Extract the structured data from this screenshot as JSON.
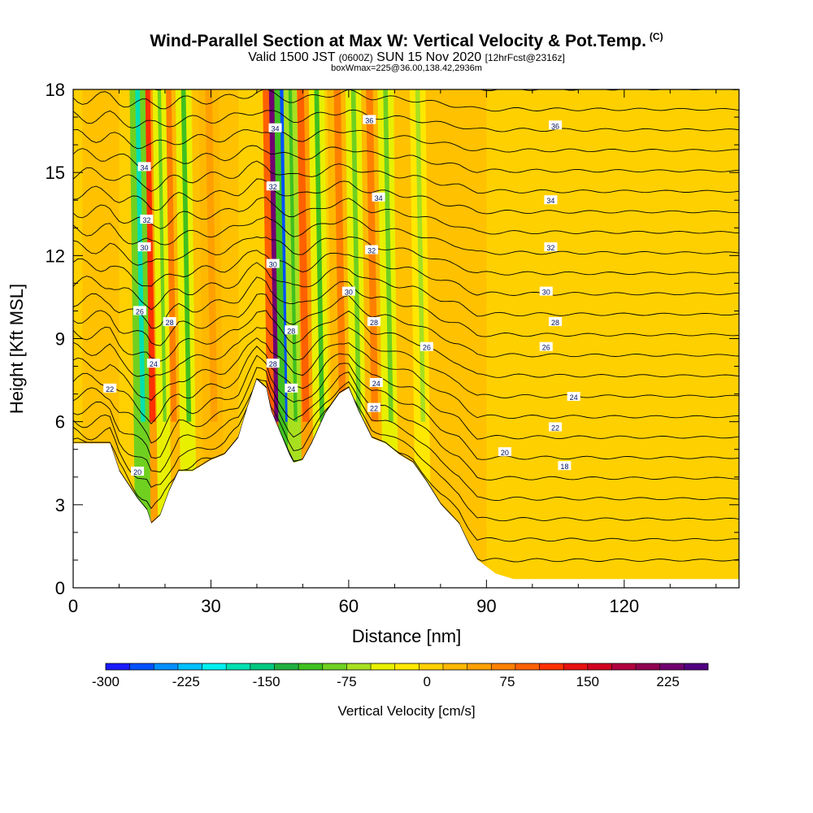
{
  "title": {
    "main": "Wind-Parallel Section at Max W: Vertical Velocity & Pot.Temp.",
    "copyright": "(C)",
    "line2_prefix": "Valid 1500 JST",
    "line2_zulu": "(0600Z)",
    "line2_date": "SUN 15 Nov 2020",
    "line2_fcst": "[12hrFcst@2316z]",
    "line3": "boxWmax=225@36.00,138.42,2936m"
  },
  "chart_data": {
    "type": "heatmap",
    "xlabel": "Distance [nm]",
    "ylabel": "Height [Kft MSL]",
    "xlim": [
      0,
      145
    ],
    "ylim": [
      0,
      18
    ],
    "x_ticks": [
      "0",
      "30",
      "60",
      "90",
      "120"
    ],
    "x_tick_values": [
      0,
      30,
      60,
      90,
      120
    ],
    "y_ticks": [
      "0",
      "3",
      "6",
      "9",
      "12",
      "15",
      "18"
    ],
    "y_tick_values": [
      0,
      3,
      6,
      9,
      12,
      15,
      18
    ],
    "colorbar": {
      "label": "Vertical Velocity [cm/s]",
      "tick_labels": [
        "-300",
        "-225",
        "-150",
        "-75",
        "0",
        "75",
        "150",
        "225"
      ],
      "tick_values": [
        -300,
        -225,
        -150,
        -75,
        0,
        75,
        150,
        225
      ],
      "range": [
        -300,
        262.5
      ],
      "colors": [
        "#1a1aff",
        "#0050ff",
        "#0090ff",
        "#00c0ff",
        "#00f0f0",
        "#00e0b0",
        "#00c880",
        "#20b040",
        "#40c020",
        "#70d020",
        "#a8e020",
        "#e8f000",
        "#ffe800",
        "#ffd000",
        "#ffb800",
        "#ffa000",
        "#ff8000",
        "#ff6000",
        "#ff3000",
        "#e81010",
        "#d00020",
        "#b00040",
        "#900050",
        "#700070",
        "#500080"
      ]
    },
    "terrain": [
      [
        0,
        5.2
      ],
      [
        8,
        5.2
      ],
      [
        10,
        4.2
      ],
      [
        12,
        3.7
      ],
      [
        14,
        3.2
      ],
      [
        16,
        2.8
      ],
      [
        17,
        2.3
      ],
      [
        19,
        2.6
      ],
      [
        21,
        3.5
      ],
      [
        23,
        4.2
      ],
      [
        26,
        4.2
      ],
      [
        30,
        4.6
      ],
      [
        33,
        4.8
      ],
      [
        36,
        5.4
      ],
      [
        38,
        6.5
      ],
      [
        40,
        7.5
      ],
      [
        42,
        7.2
      ],
      [
        43,
        6.4
      ],
      [
        45,
        5.6
      ],
      [
        47,
        4.8
      ],
      [
        48,
        4.5
      ],
      [
        50,
        4.6
      ],
      [
        52,
        5.2
      ],
      [
        55,
        6.3
      ],
      [
        58,
        7.0
      ],
      [
        60,
        7.2
      ],
      [
        62,
        6.4
      ],
      [
        65,
        5.4
      ],
      [
        68,
        5.2
      ],
      [
        71,
        4.8
      ],
      [
        74,
        4.5
      ],
      [
        77,
        3.8
      ],
      [
        80,
        3.0
      ],
      [
        84,
        2.3
      ],
      [
        86,
        1.6
      ],
      [
        88,
        1.0
      ],
      [
        92,
        0.5
      ],
      [
        96,
        0.3
      ],
      [
        145,
        0.3
      ]
    ],
    "theta_contour_labels": [
      {
        "text": "20",
        "x": 14,
        "y": 4.2
      },
      {
        "text": "22",
        "x": 8,
        "y": 7.2
      },
      {
        "text": "24",
        "x": 17.5,
        "y": 8.1
      },
      {
        "text": "26",
        "x": 14.5,
        "y": 10.0
      },
      {
        "text": "28",
        "x": 21,
        "y": 9.6
      },
      {
        "text": "30",
        "x": 15.5,
        "y": 12.3
      },
      {
        "text": "32",
        "x": 16,
        "y": 13.3
      },
      {
        "text": "34",
        "x": 15.5,
        "y": 15.2
      },
      {
        "text": "34",
        "x": 44,
        "y": 16.6
      },
      {
        "text": "32",
        "x": 43.5,
        "y": 14.5
      },
      {
        "text": "30",
        "x": 43.5,
        "y": 11.7
      },
      {
        "text": "28",
        "x": 47.5,
        "y": 9.3
      },
      {
        "text": "28",
        "x": 43.5,
        "y": 8.1
      },
      {
        "text": "24",
        "x": 47.5,
        "y": 7.2
      },
      {
        "text": "36",
        "x": 64.5,
        "y": 16.9
      },
      {
        "text": "34",
        "x": 66.5,
        "y": 14.1
      },
      {
        "text": "32",
        "x": 65,
        "y": 12.2
      },
      {
        "text": "30",
        "x": 60,
        "y": 10.7
      },
      {
        "text": "28",
        "x": 65.5,
        "y": 9.6
      },
      {
        "text": "26",
        "x": 77,
        "y": 8.7
      },
      {
        "text": "24",
        "x": 66,
        "y": 7.4
      },
      {
        "text": "22",
        "x": 65.5,
        "y": 6.5
      },
      {
        "text": "36",
        "x": 105,
        "y": 16.7
      },
      {
        "text": "34",
        "x": 104,
        "y": 14.0
      },
      {
        "text": "32",
        "x": 104,
        "y": 12.3
      },
      {
        "text": "30",
        "x": 103,
        "y": 10.7
      },
      {
        "text": "28",
        "x": 105,
        "y": 9.6
      },
      {
        "text": "26",
        "x": 103,
        "y": 8.7
      },
      {
        "text": "24",
        "x": 109,
        "y": 6.9
      },
      {
        "text": "22",
        "x": 105,
        "y": 5.8
      },
      {
        "text": "20",
        "x": 94,
        "y": 4.9
      },
      {
        "text": "18",
        "x": 107,
        "y": 4.4
      }
    ],
    "updraft_bands": [
      {
        "x0": 14.5,
        "x1": 17.5,
        "w": 120
      },
      {
        "x0": 42,
        "x1": 44.5,
        "w": 220
      },
      {
        "x0": 19.5,
        "x1": 22,
        "w": 80
      },
      {
        "x0": 48,
        "x1": 51,
        "w": 90
      },
      {
        "x0": 56,
        "x1": 59,
        "w": 60
      },
      {
        "x0": 63,
        "x1": 66,
        "w": 70
      },
      {
        "x0": 28,
        "x1": 31,
        "w": 40
      }
    ],
    "downdraft_bands": [
      {
        "x0": 13,
        "x1": 15,
        "w": -180
      },
      {
        "x0": 44.5,
        "x1": 46.5,
        "w": -260
      },
      {
        "x0": 18,
        "x1": 19.5,
        "w": -90
      },
      {
        "x0": 23,
        "x1": 25,
        "w": -100
      },
      {
        "x0": 46.5,
        "x1": 48,
        "w": -120
      },
      {
        "x0": 52,
        "x1": 54,
        "w": -110
      },
      {
        "x0": 60,
        "x1": 62,
        "w": -80
      },
      {
        "x0": 67,
        "x1": 69,
        "w": -90
      },
      {
        "x0": 74,
        "x1": 76,
        "w": -60
      }
    ]
  }
}
